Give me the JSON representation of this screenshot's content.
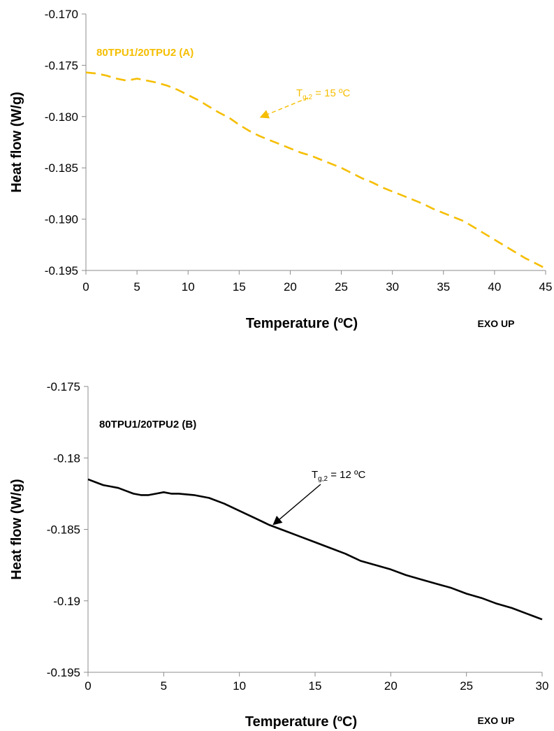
{
  "colors": {
    "series_a": "#F5BE00",
    "series_b": "#000000",
    "axis": "#8C8C8C"
  },
  "chart_data": [
    {
      "type": "line",
      "panel_label": "80TPU1/20TPU2 (A)",
      "xlabel": "Temperature (ºC)",
      "ylabel": "Heat flow (W/g)",
      "corner_note": "EXO UP",
      "xlim": [
        0,
        45
      ],
      "ylim": [
        -0.195,
        -0.17
      ],
      "x_ticks": [
        0,
        5,
        10,
        15,
        20,
        25,
        30,
        35,
        40,
        45
      ],
      "x_tick_labels": [
        "0",
        "5",
        "10",
        "15",
        "20",
        "25",
        "30",
        "35",
        "40",
        "45"
      ],
      "y_ticks": [
        -0.17,
        -0.175,
        -0.18,
        -0.185,
        -0.19,
        -0.195
      ],
      "y_tick_labels": [
        "-0.170",
        "-0.175",
        "-0.180",
        "-0.185",
        "-0.190",
        "-0.195"
      ],
      "line_style": "dashed",
      "series": [
        {
          "color": "#F5BE00",
          "x": [
            0,
            1,
            2,
            3,
            4,
            5,
            6,
            7,
            8,
            9,
            10,
            11,
            12,
            13,
            14,
            15,
            16,
            17,
            18,
            19,
            20,
            21,
            22,
            23,
            24,
            25,
            26,
            27,
            28,
            29,
            30,
            31,
            32,
            33,
            34,
            35,
            36,
            37,
            38,
            39,
            40,
            41,
            42,
            43,
            44,
            45
          ],
          "y": [
            -0.1757,
            -0.1758,
            -0.176,
            -0.1763,
            -0.1765,
            -0.1763,
            -0.1765,
            -0.1767,
            -0.177,
            -0.1774,
            -0.1779,
            -0.1784,
            -0.179,
            -0.1796,
            -0.1801,
            -0.1808,
            -0.1814,
            -0.1819,
            -0.1823,
            -0.1827,
            -0.1831,
            -0.1835,
            -0.1838,
            -0.1842,
            -0.1846,
            -0.185,
            -0.1855,
            -0.186,
            -0.1864,
            -0.1869,
            -0.1873,
            -0.1877,
            -0.1881,
            -0.1885,
            -0.189,
            -0.1894,
            -0.1898,
            -0.1902,
            -0.1908,
            -0.1914,
            -0.192,
            -0.1926,
            -0.1932,
            -0.1938,
            -0.1943,
            -0.1948
          ]
        }
      ],
      "annotation": {
        "label_main": "T",
        "label_sub": "g,2",
        "label_rest": " = 15 ºC",
        "arrow_x": 17,
        "arrow_y": -0.1801
      }
    },
    {
      "type": "line",
      "panel_label": "80TPU1/20TPU2 (B)",
      "xlabel": "Temperature (ºC)",
      "ylabel": "Heat flow (W/g)",
      "corner_note": "EXO UP",
      "xlim": [
        0,
        30
      ],
      "ylim": [
        -0.195,
        -0.175
      ],
      "x_ticks": [
        0,
        5,
        10,
        15,
        20,
        25,
        30
      ],
      "x_tick_labels": [
        "0",
        "5",
        "10",
        "15",
        "20",
        "25",
        "30"
      ],
      "y_ticks": [
        -0.175,
        -0.18,
        -0.185,
        -0.19,
        -0.195
      ],
      "y_tick_labels": [
        "-0.175",
        "-0.18",
        "-0.185",
        "-0.19",
        "-0.195"
      ],
      "line_style": "solid",
      "series": [
        {
          "color": "#000000",
          "x": [
            0,
            0.5,
            1,
            1.5,
            2,
            2.5,
            3,
            3.5,
            4,
            4.5,
            5,
            5.5,
            6,
            7,
            8,
            9,
            10,
            11,
            12,
            13,
            14,
            15,
            16,
            17,
            18,
            19,
            20,
            21,
            22,
            23,
            24,
            25,
            26,
            27,
            28,
            29,
            30
          ],
          "y": [
            -0.1815,
            -0.1817,
            -0.1819,
            -0.182,
            -0.1821,
            -0.1823,
            -0.1825,
            -0.1826,
            -0.1826,
            -0.1825,
            -0.1824,
            -0.1825,
            -0.1825,
            -0.1826,
            -0.1828,
            -0.1832,
            -0.1837,
            -0.1842,
            -0.1847,
            -0.1851,
            -0.1855,
            -0.1859,
            -0.1863,
            -0.1867,
            -0.1872,
            -0.1875,
            -0.1878,
            -0.1882,
            -0.1885,
            -0.1888,
            -0.1891,
            -0.1895,
            -0.1898,
            -0.1902,
            -0.1905,
            -0.1909,
            -0.1913
          ]
        }
      ],
      "annotation": {
        "label_main": "T",
        "label_sub": "g,2",
        "label_rest": " = 12 ºC",
        "arrow_x": 12.2,
        "arrow_y": -0.1847
      }
    }
  ]
}
